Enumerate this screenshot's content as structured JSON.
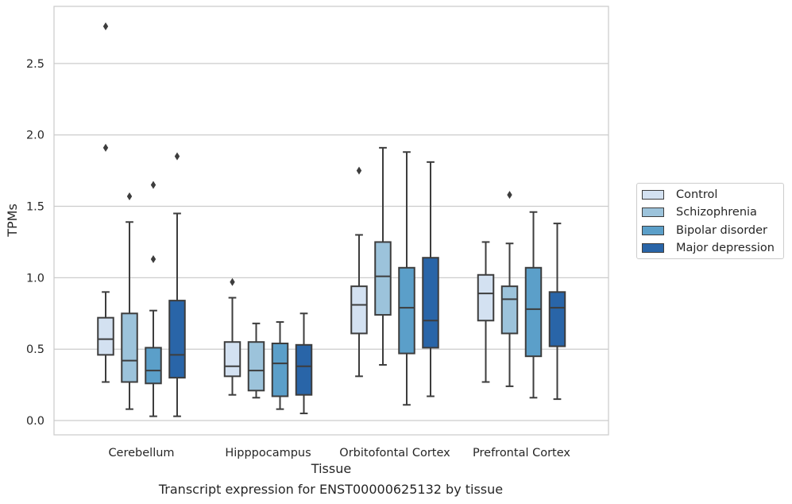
{
  "caption": "Transcript expression for ENST00000625132 by tissue",
  "chart_data": {
    "type": "box",
    "xlabel": "Tissue",
    "ylabel": "TPMs",
    "ylim": [
      -0.1,
      2.9
    ],
    "yticks": [
      0.0,
      0.5,
      1.0,
      1.5,
      2.0,
      2.5
    ],
    "ytick_labels": [
      "0.0",
      "0.5",
      "1.0",
      "1.5",
      "2.0",
      "2.5"
    ],
    "grid": "horizontal",
    "legend_position": "right",
    "categories": [
      "Cerebellum",
      "Hipppocampus",
      "Orbitofontal Cortex",
      "Prefrontal Cortex"
    ],
    "series": [
      {
        "name": "Control",
        "color": "#d3e1f1",
        "boxes": [
          {
            "whislo": 0.27,
            "q1": 0.46,
            "med": 0.57,
            "q3": 0.72,
            "whishi": 0.9,
            "fliers": [
              2.76,
              1.91
            ]
          },
          {
            "whislo": 0.18,
            "q1": 0.31,
            "med": 0.38,
            "q3": 0.55,
            "whishi": 0.86,
            "fliers": [
              0.97
            ]
          },
          {
            "whislo": 0.31,
            "q1": 0.61,
            "med": 0.81,
            "q3": 0.94,
            "whishi": 1.3,
            "fliers": [
              1.75
            ]
          },
          {
            "whislo": 0.27,
            "q1": 0.7,
            "med": 0.89,
            "q3": 1.02,
            "whishi": 1.25,
            "fliers": []
          }
        ]
      },
      {
        "name": "Schizophrenia",
        "color": "#9cc3db",
        "boxes": [
          {
            "whislo": 0.08,
            "q1": 0.27,
            "med": 0.42,
            "q3": 0.75,
            "whishi": 1.39,
            "fliers": [
              1.57
            ]
          },
          {
            "whislo": 0.16,
            "q1": 0.21,
            "med": 0.35,
            "q3": 0.55,
            "whishi": 0.68,
            "fliers": []
          },
          {
            "whislo": 0.39,
            "q1": 0.74,
            "med": 1.01,
            "q3": 1.25,
            "whishi": 1.91,
            "fliers": []
          },
          {
            "whislo": 0.24,
            "q1": 0.61,
            "med": 0.85,
            "q3": 0.94,
            "whishi": 1.24,
            "fliers": [
              1.58
            ]
          }
        ]
      },
      {
        "name": "Bipolar disorder",
        "color": "#5b9fc9",
        "boxes": [
          {
            "whislo": 0.03,
            "q1": 0.26,
            "med": 0.35,
            "q3": 0.51,
            "whishi": 0.77,
            "fliers": [
              1.65,
              1.13
            ]
          },
          {
            "whislo": 0.08,
            "q1": 0.17,
            "med": 0.4,
            "q3": 0.54,
            "whishi": 0.69,
            "fliers": []
          },
          {
            "whislo": 0.11,
            "q1": 0.47,
            "med": 0.79,
            "q3": 1.07,
            "whishi": 1.88,
            "fliers": []
          },
          {
            "whislo": 0.16,
            "q1": 0.45,
            "med": 0.78,
            "q3": 1.07,
            "whishi": 1.46,
            "fliers": []
          }
        ]
      },
      {
        "name": "Major depression",
        "color": "#2965a8",
        "boxes": [
          {
            "whislo": 0.03,
            "q1": 0.3,
            "med": 0.46,
            "q3": 0.84,
            "whishi": 1.45,
            "fliers": [
              1.85
            ]
          },
          {
            "whislo": 0.05,
            "q1": 0.18,
            "med": 0.38,
            "q3": 0.53,
            "whishi": 0.75,
            "fliers": []
          },
          {
            "whislo": 0.17,
            "q1": 0.51,
            "med": 0.7,
            "q3": 1.14,
            "whishi": 1.81,
            "fliers": []
          },
          {
            "whislo": 0.15,
            "q1": 0.52,
            "med": 0.79,
            "q3": 0.9,
            "whishi": 1.38,
            "fliers": []
          }
        ]
      }
    ]
  }
}
